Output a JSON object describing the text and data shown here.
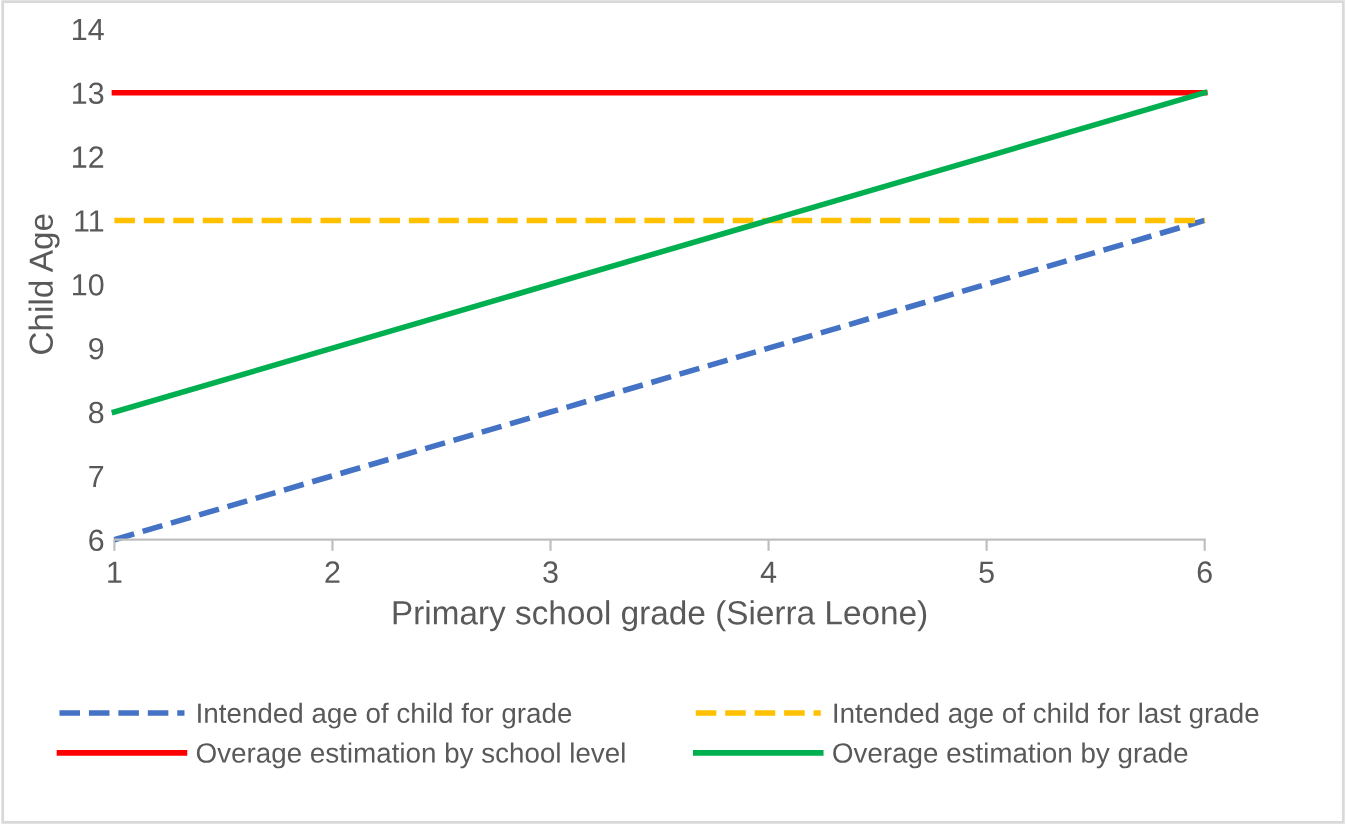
{
  "chart_data": {
    "type": "line",
    "xlabel": "Primary school grade (Sierra Leone)",
    "ylabel": "Child Age",
    "x": [
      1,
      2,
      3,
      4,
      5,
      6
    ],
    "xlim": [
      1,
      6
    ],
    "xticks": [
      1,
      2,
      3,
      4,
      5,
      6
    ],
    "ylim": [
      6,
      14
    ],
    "yticks": [
      6,
      7,
      8,
      9,
      10,
      11,
      12,
      13,
      14
    ],
    "grid": false,
    "legend": "bottom",
    "marker": "none",
    "series": [
      {
        "name": "Intended age of child for grade",
        "color": "#4472c4",
        "line_style": "dashed",
        "values": [
          6,
          7,
          8,
          9,
          10,
          11
        ]
      },
      {
        "name": "Intended age of child for last grade",
        "color": "#ffc000",
        "line_style": "dashed",
        "values": [
          11,
          11,
          11,
          11,
          11,
          11
        ]
      },
      {
        "name": "Overage estimation by school level",
        "color": "#ff0000",
        "line_style": "solid",
        "values": [
          13,
          13,
          13,
          13,
          13,
          13
        ]
      },
      {
        "name": "Overage estimation by grade",
        "color": "#00b050",
        "line_style": "solid",
        "values": [
          8,
          9,
          10,
          11,
          12,
          13
        ]
      }
    ]
  }
}
